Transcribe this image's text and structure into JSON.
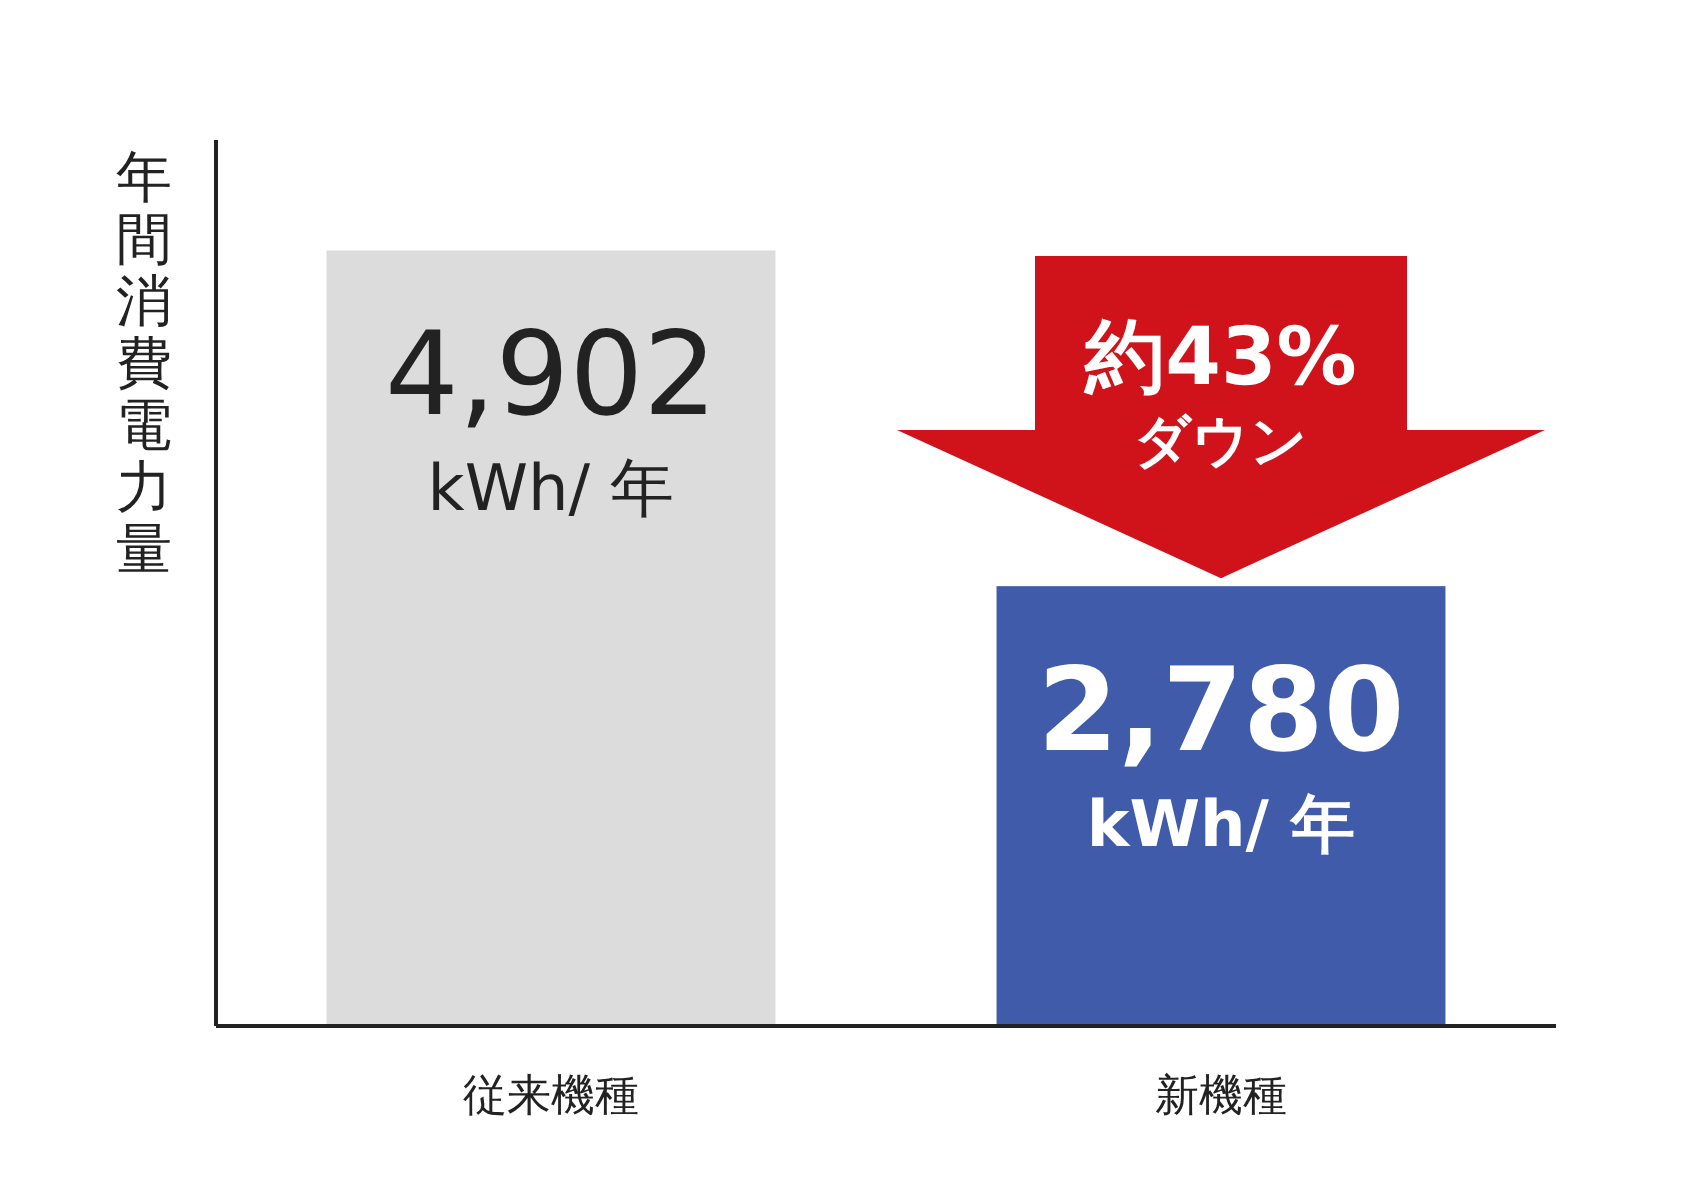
{
  "chart_data": {
    "type": "bar",
    "ylabel": "年間消費電力量",
    "categories": [
      "従来機種",
      "新機種"
    ],
    "values": [
      4902,
      2780
    ],
    "colors": [
      "#dcdcdc",
      "#3f5ba9"
    ],
    "value_labels": [
      "4,902\nkWh/ 年",
      "2,780\nkWh/ 年"
    ],
    "ylim": [
      0,
      5600
    ],
    "annotations": [
      "約43%\nダウン"
    ]
  }
}
